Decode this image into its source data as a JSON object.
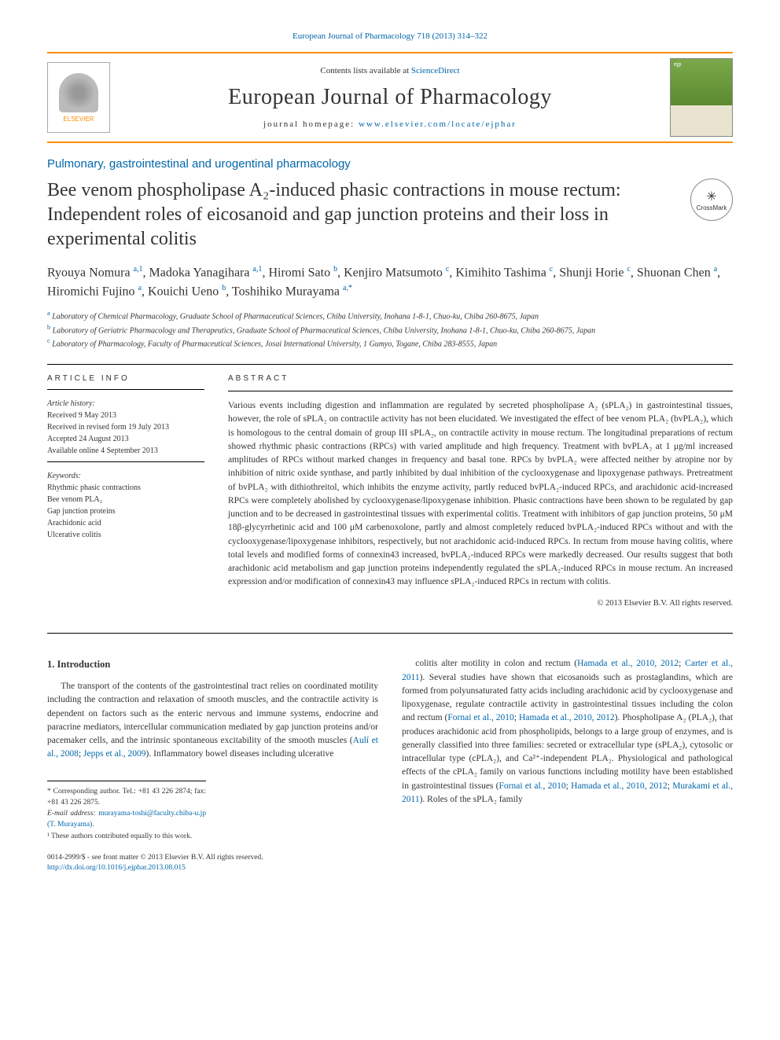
{
  "top_citation": "European Journal of Pharmacology 718 (2013) 314–322",
  "header": {
    "contents_prefix": "Contents lists available at ",
    "contents_link": "ScienceDirect",
    "journal_name": "European Journal of Pharmacology",
    "homepage_prefix": "journal homepage: ",
    "homepage_link": "www.elsevier.com/locate/ejphar",
    "elsevier_label": "ELSEVIER"
  },
  "section_name": "Pulmonary, gastrointestinal and urogentinal pharmacology",
  "title": "Bee venom phospholipase A₂-induced phasic contractions in mouse rectum: Independent roles of eicosanoid and gap junction proteins and their loss in experimental colitis",
  "crossmark_label": "CrossMark",
  "authors_html": "Ryouya Nomura <sup>a,1</sup>, Madoka Yanagihara <sup>a,1</sup>, Hiromi Sato <sup>b</sup>, Kenjiro Matsumoto <sup>c</sup>, Kimihito Tashima <sup>c</sup>, Shunji Horie <sup>c</sup>, Shuonan Chen <sup>a</sup>, Hiromichi Fujino <sup>a</sup>, Kouichi Ueno <sup>b</sup>, Toshihiko Murayama <sup>a,*</sup>",
  "affiliations": [
    {
      "sup": "a",
      "text": "Laboratory of Chemical Pharmacology, Graduate School of Pharmaceutical Sciences, Chiba University, Inohana 1-8-1, Chuo-ku, Chiba 260-8675, Japan"
    },
    {
      "sup": "b",
      "text": "Laboratory of Geriatric Pharmacology and Therapeutics, Graduate School of Pharmaceutical Sciences, Chiba University, Inohana 1-8-1, Chuo-ku, Chiba 260-8675, Japan"
    },
    {
      "sup": "c",
      "text": "Laboratory of Pharmacology, Faculty of Pharmaceutical Sciences, Josai International University, 1 Gumyo, Togane, Chiba 283-8555, Japan"
    }
  ],
  "article_info": {
    "heading": "ARTICLE INFO",
    "history_label": "Article history:",
    "received": "Received 9 May 2013",
    "revised": "Received in revised form 19 July 2013",
    "accepted": "Accepted 24 August 2013",
    "online": "Available online 4 September 2013",
    "keywords_label": "Keywords:",
    "keywords": [
      "Rhythmic phasic contractions",
      "Bee venom PLA₂",
      "Gap junction proteins",
      "Arachidonic acid",
      "Ulcerative colitis"
    ]
  },
  "abstract": {
    "heading": "ABSTRACT",
    "text": "Various events including digestion and inflammation are regulated by secreted phospholipase A₂ (sPLA₂) in gastrointestinal tissues, however, the role of sPLA₂ on contractile activity has not been elucidated. We investigated the effect of bee venom PLA₂ (bvPLA₂), which is homologous to the central domain of group III sPLA₂, on contractile activity in mouse rectum. The longitudinal preparations of rectum showed rhythmic phasic contractions (RPCs) with varied amplitude and high frequency. Treatment with bvPLA₂ at 1 μg/ml increased amplitudes of RPCs without marked changes in frequency and basal tone. RPCs by bvPLA₂ were affected neither by atropine nor by inhibition of nitric oxide synthase, and partly inhibited by dual inhibition of the cyclooxygenase and lipoxygenase pathways. Pretreatment of bvPLA₂ with dithiothreitol, which inhibits the enzyme activity, partly reduced bvPLA₂-induced RPCs, and arachidonic acid-increased RPCs were completely abolished by cyclooxygenase/lipoxygenase inhibition. Phasic contractions have been shown to be regulated by gap junction and to be decreased in gastrointestinal tissues with experimental colitis. Treatment with inhibitors of gap junction proteins, 50 μM 18β-glycyrrhetinic acid and 100 μM carbenoxolone, partly and almost completely reduced bvPLA₂-induced RPCs without and with the cyclooxygenase/lipoxygenase inhibitors, respectively, but not arachidonic acid-induced RPCs. In rectum from mouse having colitis, where total levels and modified forms of connexin43 increased, bvPLA₂-induced RPCs were markedly decreased. Our results suggest that both arachidonic acid metabolism and gap junction proteins independently regulated the sPLA₂-induced RPCs in mouse rectum. An increased expression and/or modification of connexin43 may influence sPLA₂-induced RPCs in rectum with colitis.",
    "rights": "© 2013 Elsevier B.V. All rights reserved."
  },
  "intro": {
    "heading": "1.  Introduction",
    "col1": "The transport of the contents of the gastrointestinal tract relies on coordinated motility including the contraction and relaxation of smooth muscles, and the contractile activity is dependent on factors such as the enteric nervous and immune systems, endocrine and paracrine mediators, intercellular communication mediated by gap junction proteins and/or pacemaker cells, and the intrinsic spontaneous excitability of the smooth muscles (<a>Aulí et al., 2008</a>; <a>Jepps et al., 2009</a>). Inflammatory bowel diseases including ulcerative",
    "col2": "colitis alter motility in colon and rectum (<a>Hamada et al., 2010, 2012</a>; <a>Carter et al., 2011</a>). Several studies have shown that eicosanoids such as prostaglandins, which are formed from polyunsaturated fatty acids including arachidonic acid by cyclooxygenase and lipoxygenase, regulate contractile activity in gastrointestinal tissues including the colon and rectum (<a>Fornai et al., 2010</a>; <a>Hamada et al., 2010, 2012</a>). Phospholipase A₂ (PLA₂), that produces arachidonic acid from phospholipids, belongs to a large group of enzymes, and is generally classified into three families: secreted or extracellular type (sPLA₂), cytosolic or intracellular type (cPLA₂), and Ca²⁺-independent PLA₂. Physiological and pathological effects of the cPLA₂ family on various functions including motility have been established in gastrointestinal tissues (<a>Fornai et al., 2010</a>; <a>Hamada et al., 2010, 2012</a>; <a>Murakami et al., 2011</a>). Roles of the sPLA₂ family"
  },
  "footnotes": {
    "corr": "* Corresponding author. Tel.: +81 43 226 2874; fax: +81 43 226 2875.",
    "email_label": "E-mail address: ",
    "email": "murayama-toshi@faculty.chiba-u.jp (T. Murayama).",
    "equal": "¹ These authors contributed equally to this work."
  },
  "footer": {
    "issn": "0014-2999/$ - see front matter © 2013 Elsevier B.V. All rights reserved.",
    "doi": "http://dx.doi.org/10.1016/j.ejphar.2013.08.015"
  }
}
